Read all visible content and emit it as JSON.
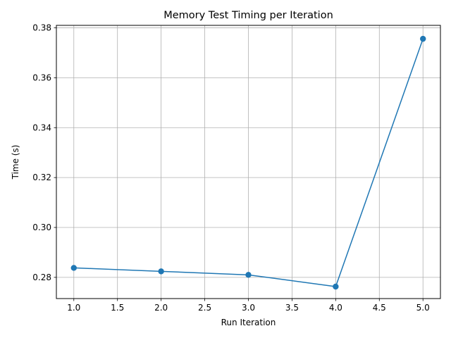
{
  "chart_data": {
    "type": "line",
    "title": "Memory Test Timing per Iteration",
    "xlabel": "Run Iteration",
    "ylabel": "Time (s)",
    "xlim": [
      0.8,
      5.2
    ],
    "ylim": [
      0.2715,
      0.381
    ],
    "xticks": [
      1.0,
      1.5,
      2.0,
      2.5,
      3.0,
      3.5,
      4.0,
      4.5,
      5.0
    ],
    "xtick_labels": [
      "1.0",
      "1.5",
      "2.0",
      "2.5",
      "3.0",
      "3.5",
      "4.0",
      "4.5",
      "5.0"
    ],
    "yticks": [
      0.28,
      0.3,
      0.32,
      0.34,
      0.36,
      0.38
    ],
    "ytick_labels": [
      "0.28",
      "0.30",
      "0.32",
      "0.34",
      "0.36",
      "0.38"
    ],
    "grid": true,
    "marker": "circle",
    "color": "#1f77b4",
    "series": [
      {
        "x": [
          1,
          2,
          3,
          4,
          5
        ],
        "values": [
          0.2838,
          0.2824,
          0.281,
          0.2763,
          0.3756
        ]
      }
    ]
  }
}
